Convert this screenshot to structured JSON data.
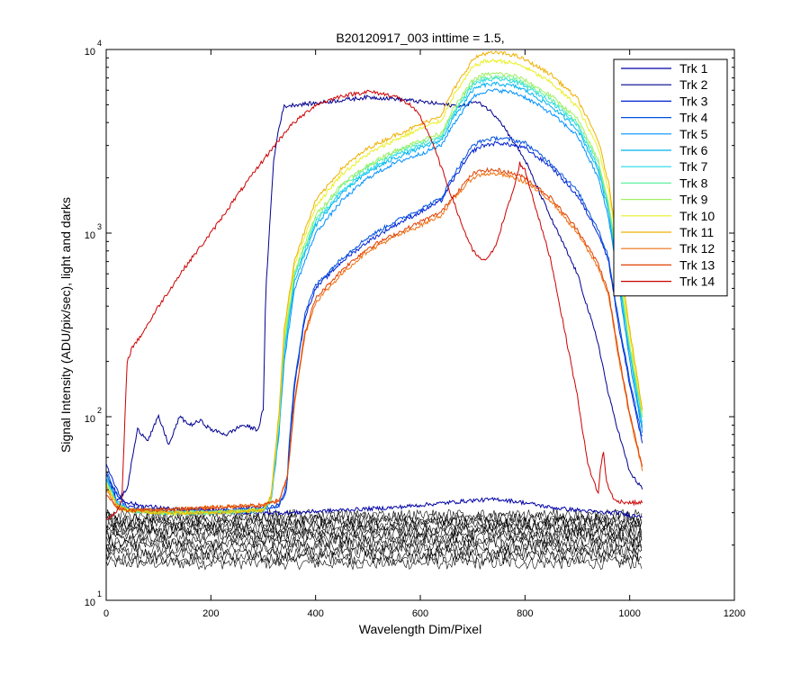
{
  "chart_data": {
    "type": "line",
    "title": "B20120917_003 inttime = 1.5,",
    "xlabel": "Wavelength Dim/Pixel",
    "ylabel": "Signal Intensity (ADU/pix/sec), light and darks",
    "xlim": [
      0,
      1200
    ],
    "ylim": [
      10,
      10000
    ],
    "yscale": "log",
    "x_ticks": [
      "0",
      "200",
      "400",
      "600",
      "800",
      "1000",
      "1200"
    ],
    "y_ticks": [
      {
        "base": "10",
        "exp": "1"
      },
      {
        "base": "10",
        "exp": "2"
      },
      {
        "base": "10",
        "exp": "3"
      },
      {
        "base": "10",
        "exp": "4"
      }
    ],
    "grid": false,
    "legend_position": "top-right",
    "darks": {
      "color": "#000000",
      "x_range": [
        0,
        1025
      ],
      "level_range": [
        16,
        29
      ]
    },
    "series": [
      {
        "name": "Trk 1",
        "color": "#0000a8",
        "x": [
          0,
          30,
          60,
          100,
          150,
          200,
          250,
          290,
          303,
          320,
          340,
          360,
          400,
          450,
          500,
          550,
          600,
          650,
          700,
          750,
          800,
          850,
          900,
          950,
          980,
          1000,
          1025
        ],
        "y": [
          45,
          35,
          33,
          32,
          31,
          31,
          30,
          30,
          30,
          30,
          30,
          30,
          30.5,
          31,
          31.5,
          32,
          33,
          34,
          35,
          35.5,
          34,
          32,
          31,
          30,
          30,
          29,
          29
        ]
      },
      {
        "name": "Trk 2",
        "color": "#00008f",
        "x": [
          0,
          20,
          40,
          50,
          60,
          80,
          100,
          120,
          140,
          160,
          180,
          200,
          230,
          260,
          290,
          300,
          305,
          320,
          330,
          340,
          360,
          400,
          450,
          500,
          550,
          600,
          650,
          680,
          700,
          720,
          750,
          800,
          850,
          900,
          940,
          960,
          980,
          1000,
          1025
        ],
        "y": [
          50,
          35,
          40,
          60,
          85,
          75,
          100,
          70,
          100,
          90,
          95,
          85,
          80,
          90,
          85,
          110,
          500,
          2500,
          3800,
          4900,
          5000,
          5100,
          5300,
          5500,
          5400,
          5200,
          5000,
          4900,
          5200,
          5000,
          4200,
          2500,
          1200,
          600,
          250,
          130,
          80,
          50,
          40
        ]
      },
      {
        "name": "Trk 3",
        "color": "#0020d0",
        "x": [
          0,
          20,
          40,
          100,
          200,
          300,
          330,
          345,
          350,
          360,
          380,
          400,
          450,
          500,
          550,
          600,
          640,
          660,
          700,
          720,
          750,
          780,
          800,
          850,
          900,
          940,
          960,
          980,
          1000,
          1025
        ],
        "y": [
          55,
          40,
          32,
          31,
          31,
          32,
          33,
          40,
          70,
          150,
          350,
          500,
          700,
          900,
          1100,
          1300,
          1500,
          1900,
          2800,
          3000,
          3100,
          3000,
          2900,
          2300,
          1600,
          1000,
          700,
          300,
          150,
          70
        ]
      },
      {
        "name": "Trk 4",
        "color": "#0050e0",
        "x": [
          0,
          20,
          40,
          100,
          200,
          300,
          330,
          345,
          350,
          360,
          380,
          400,
          450,
          500,
          550,
          600,
          640,
          660,
          700,
          720,
          750,
          780,
          800,
          850,
          900,
          940,
          960,
          980,
          1000,
          1025
        ],
        "y": [
          50,
          38,
          31,
          30,
          30,
          31,
          33,
          42,
          75,
          160,
          370,
          520,
          730,
          950,
          1150,
          1350,
          1550,
          2000,
          3000,
          3200,
          3300,
          3200,
          3100,
          2400,
          1700,
          1050,
          730,
          320,
          160,
          75
        ]
      },
      {
        "name": "Trk 5",
        "color": "#0090ff",
        "x": [
          0,
          20,
          40,
          100,
          200,
          300,
          315,
          330,
          340,
          360,
          400,
          450,
          500,
          550,
          600,
          640,
          660,
          700,
          720,
          750,
          780,
          800,
          850,
          900,
          940,
          960,
          980,
          1000,
          1025
        ],
        "y": [
          48,
          35,
          31,
          30,
          30,
          31,
          35,
          80,
          200,
          500,
          1000,
          1500,
          2000,
          2400,
          2700,
          3000,
          3800,
          5500,
          5900,
          6000,
          5800,
          5500,
          4500,
          3400,
          2000,
          1200,
          500,
          200,
          80
        ]
      },
      {
        "name": "Trk 6",
        "color": "#00b0f0",
        "x": [
          0,
          20,
          40,
          100,
          200,
          300,
          315,
          330,
          340,
          360,
          400,
          450,
          500,
          550,
          600,
          640,
          660,
          700,
          720,
          750,
          780,
          800,
          850,
          900,
          940,
          960,
          980,
          1000,
          1025
        ],
        "y": [
          46,
          34,
          31,
          30,
          30,
          31,
          35,
          85,
          220,
          550,
          1100,
          1650,
          2150,
          2550,
          2900,
          3200,
          4100,
          6000,
          6400,
          6500,
          6300,
          6000,
          4900,
          3700,
          2200,
          1300,
          550,
          220,
          85
        ]
      },
      {
        "name": "Trk 7",
        "color": "#20d8e8",
        "x": [
          0,
          20,
          40,
          100,
          200,
          300,
          315,
          330,
          340,
          360,
          400,
          450,
          500,
          550,
          600,
          640,
          660,
          700,
          720,
          750,
          780,
          800,
          850,
          900,
          940,
          960,
          980,
          1000,
          1025
        ],
        "y": [
          45,
          34,
          31,
          30,
          30,
          31,
          35,
          90,
          240,
          580,
          1150,
          1700,
          2200,
          2650,
          3000,
          3300,
          4300,
          6400,
          6800,
          6900,
          6700,
          6300,
          5200,
          3900,
          2300,
          1350,
          580,
          230,
          90
        ]
      },
      {
        "name": "Trk 8",
        "color": "#60f0a0",
        "x": [
          0,
          20,
          40,
          100,
          200,
          300,
          315,
          330,
          340,
          360,
          400,
          450,
          500,
          550,
          600,
          640,
          660,
          700,
          720,
          750,
          780,
          800,
          850,
          900,
          940,
          960,
          980,
          1000,
          1025
        ],
        "y": [
          44,
          33,
          31,
          30,
          30,
          31,
          36,
          95,
          250,
          600,
          1200,
          1800,
          2300,
          2750,
          3100,
          3400,
          4400,
          6600,
          7000,
          7100,
          6900,
          6500,
          5400,
          4000,
          2400,
          1400,
          600,
          240,
          95
        ]
      },
      {
        "name": "Trk 9",
        "color": "#a0f060",
        "x": [
          0,
          20,
          40,
          100,
          200,
          300,
          315,
          330,
          340,
          360,
          400,
          450,
          500,
          550,
          600,
          640,
          660,
          700,
          720,
          750,
          780,
          800,
          850,
          900,
          940,
          960,
          980,
          1000,
          1025
        ],
        "y": [
          44,
          33,
          31,
          30,
          30,
          31,
          36,
          95,
          260,
          620,
          1250,
          1850,
          2350,
          2800,
          3200,
          3500,
          4600,
          6800,
          7300,
          7400,
          7200,
          6800,
          5600,
          4200,
          2500,
          1450,
          620,
          250,
          98
        ]
      },
      {
        "name": "Trk 10",
        "color": "#e8f020",
        "x": [
          0,
          20,
          40,
          100,
          200,
          300,
          315,
          330,
          340,
          360,
          400,
          450,
          500,
          550,
          600,
          640,
          660,
          700,
          720,
          750,
          780,
          800,
          850,
          900,
          940,
          960,
          980,
          1000,
          1025
        ],
        "y": [
          43,
          33,
          31,
          30,
          30,
          31,
          37,
          100,
          280,
          680,
          1400,
          2100,
          2700,
          3200,
          3700,
          4100,
          5400,
          8000,
          8600,
          8700,
          8400,
          8000,
          6600,
          4900,
          2900,
          1700,
          700,
          280,
          100
        ]
      },
      {
        "name": "Trk 11",
        "color": "#f0b000",
        "x": [
          0,
          20,
          40,
          100,
          200,
          300,
          315,
          330,
          340,
          360,
          400,
          450,
          500,
          550,
          600,
          640,
          660,
          700,
          720,
          750,
          780,
          800,
          850,
          900,
          940,
          960,
          980,
          1000,
          1025
        ],
        "y": [
          42,
          33,
          31,
          30,
          30,
          31,
          37,
          105,
          300,
          720,
          1500,
          2250,
          2900,
          3400,
          3900,
          4400,
          5800,
          8800,
          9500,
          9600,
          9300,
          8800,
          7300,
          5400,
          3200,
          1850,
          770,
          300,
          105
        ]
      },
      {
        "name": "Trk 12",
        "color": "#f07010",
        "x": [
          0,
          20,
          40,
          100,
          200,
          300,
          330,
          345,
          350,
          360,
          380,
          400,
          450,
          500,
          550,
          600,
          640,
          660,
          700,
          720,
          750,
          780,
          800,
          850,
          900,
          940,
          960,
          980,
          1000,
          1025
        ],
        "y": [
          40,
          32,
          31,
          31,
          32,
          33,
          35,
          45,
          60,
          120,
          280,
          420,
          600,
          800,
          950,
          1100,
          1250,
          1500,
          2000,
          2100,
          2100,
          2000,
          1900,
          1500,
          1000,
          650,
          450,
          200,
          100,
          50
        ]
      },
      {
        "name": "Trk 13",
        "color": "#e04000",
        "x": [
          0,
          20,
          40,
          100,
          200,
          300,
          330,
          345,
          350,
          360,
          380,
          400,
          450,
          500,
          550,
          600,
          640,
          660,
          700,
          720,
          750,
          780,
          800,
          850,
          900,
          940,
          960,
          980,
          1000,
          1025
        ],
        "y": [
          38,
          32,
          31,
          31,
          32,
          33,
          35,
          46,
          62,
          125,
          290,
          440,
          630,
          830,
          980,
          1150,
          1300,
          1550,
          2100,
          2200,
          2200,
          2100,
          2000,
          1550,
          1050,
          680,
          470,
          210,
          105,
          52
        ]
      },
      {
        "name": "Trk 14",
        "color": "#cc0000",
        "x": [
          0,
          20,
          30,
          40,
          50,
          60,
          80,
          100,
          150,
          200,
          250,
          300,
          350,
          400,
          450,
          500,
          550,
          580,
          600,
          620,
          650,
          680,
          700,
          720,
          740,
          760,
          780,
          790,
          800,
          850,
          900,
          920,
          940,
          945,
          950,
          955,
          970,
          1000,
          1025
        ],
        "y": [
          28,
          30,
          35,
          200,
          240,
          260,
          320,
          400,
          650,
          1000,
          1600,
          2500,
          3800,
          5000,
          5600,
          5900,
          5600,
          5000,
          4300,
          3300,
          1900,
          1100,
          800,
          700,
          800,
          1200,
          1800,
          2400,
          2200,
          700,
          130,
          55,
          38,
          55,
          65,
          45,
          35,
          34,
          34
        ]
      }
    ]
  }
}
